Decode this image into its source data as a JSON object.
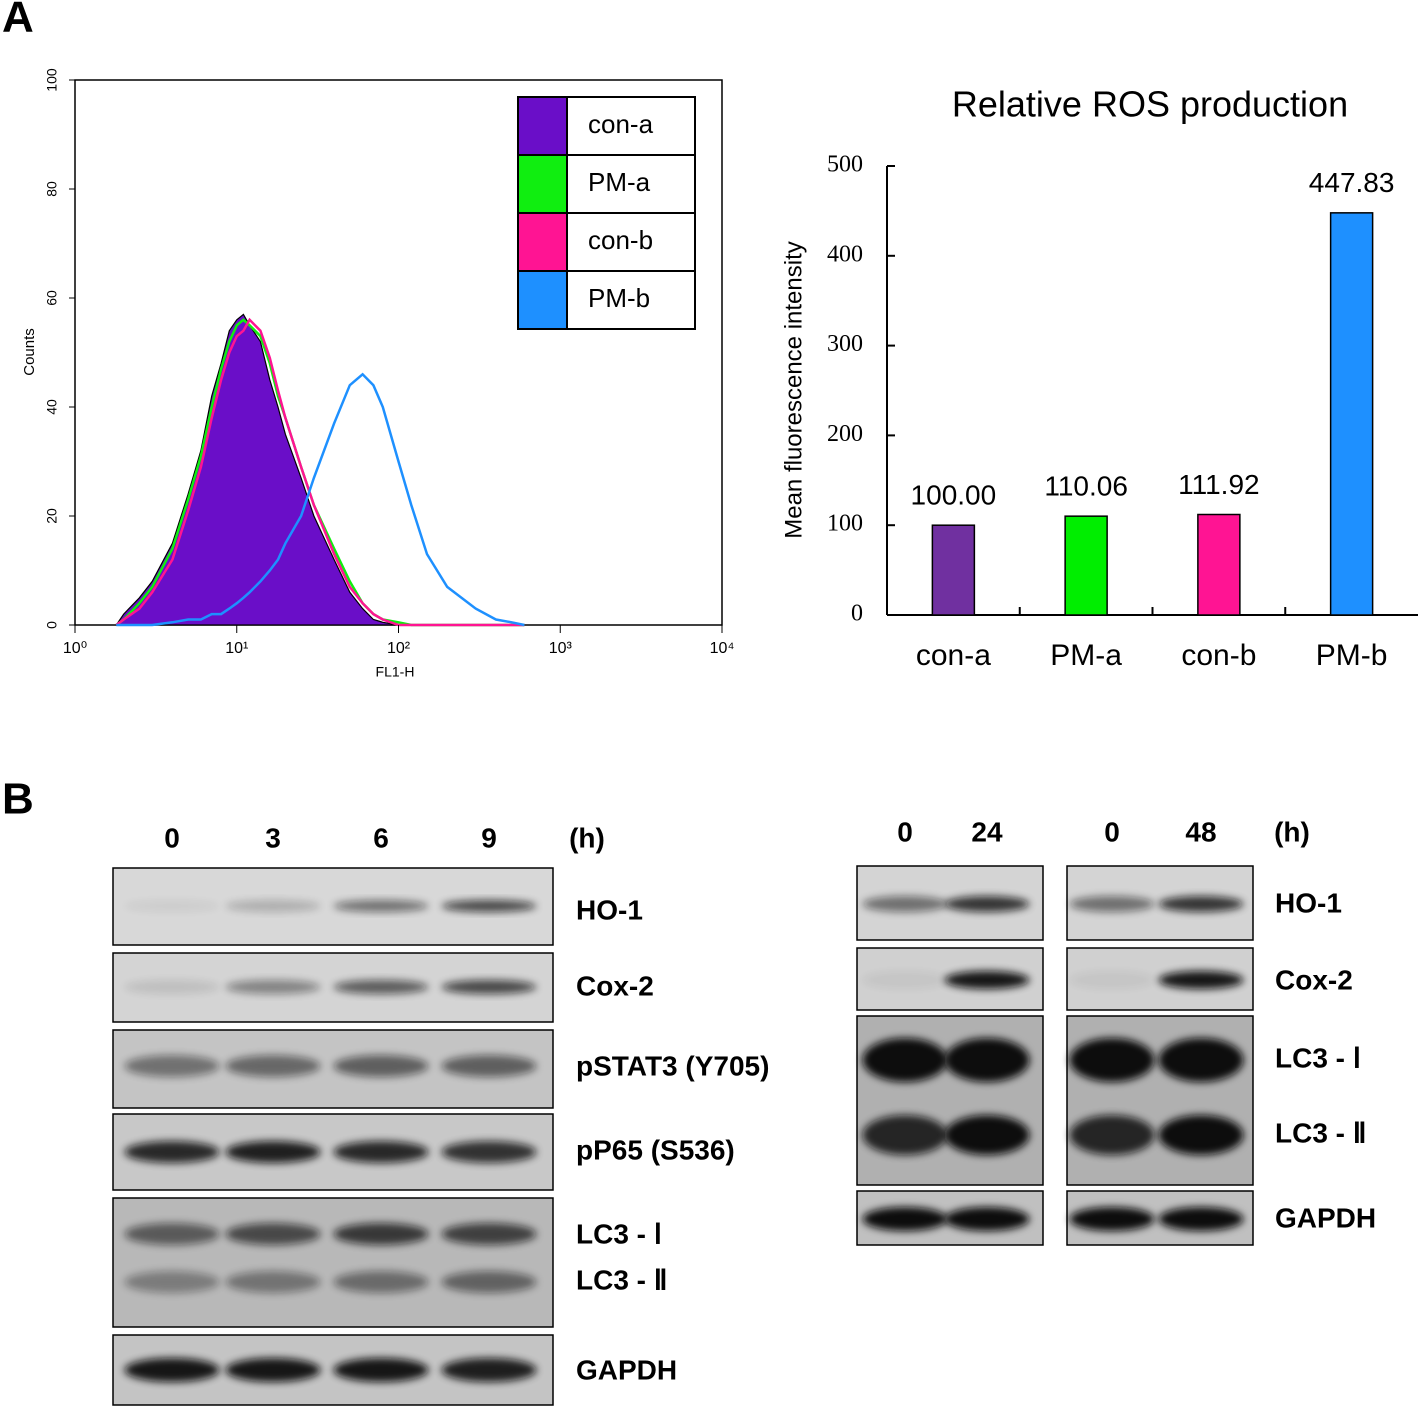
{
  "panel_labels": [
    "A",
    "B"
  ],
  "chart_data": [
    {
      "type": "line",
      "log_x": true,
      "xlabel": "FL1-H",
      "ylabel": "Counts",
      "x": [
        1.8,
        2,
        2.5,
        3,
        4,
        5,
        6,
        7,
        8,
        9,
        10,
        11,
        12,
        14,
        16,
        18,
        20,
        25,
        30,
        40,
        50,
        60,
        70,
        80,
        100,
        120,
        150,
        200,
        300,
        400,
        500,
        600
      ],
      "xlim": [
        1,
        10000
      ],
      "xticks": [
        {
          "value": 1,
          "label": "10⁰"
        },
        {
          "value": 10,
          "label": "10¹"
        },
        {
          "value": 100,
          "label": "10²"
        },
        {
          "value": 1000,
          "label": "10³"
        },
        {
          "value": 10000,
          "label": "10⁴"
        }
      ],
      "ylim": [
        0,
        100
      ],
      "yticks": [
        0,
        20,
        40,
        60,
        80,
        100
      ],
      "legend": "upper right",
      "series": [
        {
          "name": "con-a",
          "color": "#6a0ec8",
          "fill": true,
          "values": [
            0,
            2,
            5,
            8,
            15,
            24,
            32,
            42,
            48,
            54,
            56,
            57,
            55,
            52,
            45,
            40,
            35,
            27,
            20,
            12,
            6,
            3,
            1,
            0.5,
            0,
            0,
            0,
            0,
            0,
            0,
            0,
            0
          ]
        },
        {
          "name": "PM-a",
          "color": "#10ee10",
          "fill": false,
          "values": [
            0,
            1,
            4,
            7,
            14,
            23,
            31,
            40,
            47,
            52,
            55,
            56,
            55,
            53,
            48,
            42,
            38,
            29,
            22,
            14,
            8,
            4,
            2,
            1,
            0.5,
            0,
            0,
            0,
            0,
            0,
            0,
            0
          ]
        },
        {
          "name": "con-b",
          "color": "#ff1493",
          "fill": false,
          "values": [
            0,
            1,
            3,
            6,
            12,
            21,
            29,
            38,
            45,
            50,
            53,
            54,
            56,
            54,
            49,
            43,
            38,
            29,
            22,
            13,
            7,
            4,
            2,
            1,
            0,
            0,
            0,
            0,
            0,
            0,
            0,
            0
          ]
        },
        {
          "name": "PM-b",
          "color": "#1e90ff",
          "fill": false,
          "values": [
            0,
            0,
            0,
            0,
            0.5,
            1,
            1,
            2,
            2,
            3,
            4,
            5,
            6,
            8,
            10,
            12,
            15,
            20,
            27,
            37,
            44,
            46,
            44,
            40,
            30,
            22,
            13,
            7,
            3,
            1,
            0.5,
            0
          ]
        }
      ]
    },
    {
      "type": "bar",
      "title": "Relative ROS production",
      "ylabel": "Mean  fluorescence intensity",
      "categories": [
        "con-a",
        "PM-a",
        "con-b",
        "PM-b"
      ],
      "values": [
        100,
        110.06,
        111.92,
        447.83
      ],
      "value_labels": [
        "100.00",
        "110.06",
        "111.92",
        "447.83"
      ],
      "colors": [
        "#7030a0",
        "#00ee00",
        "#ff1493",
        "#1e90ff"
      ],
      "ylim": [
        0,
        500
      ],
      "yticks": [
        0,
        100,
        200,
        300,
        400,
        500
      ]
    }
  ],
  "western_blot": {
    "left": {
      "timepoints": [
        "0",
        "3",
        "6",
        "9"
      ],
      "unit": "(h)",
      "rows": [
        "HO-1",
        "Cox-2",
        "pSTAT3 (Y705)",
        "pP65 (S536)",
        "LC3 - Ⅰ",
        "LC3 - Ⅱ",
        "GAPDH"
      ]
    },
    "right": {
      "groups": [
        {
          "timepoints": [
            "0",
            "24"
          ]
        },
        {
          "timepoints": [
            "0",
            "48"
          ]
        }
      ],
      "unit": "(h)",
      "rows": [
        "HO-1",
        "Cox-2",
        "LC3 - Ⅰ",
        "LC3 - Ⅱ",
        "GAPDH"
      ]
    }
  }
}
